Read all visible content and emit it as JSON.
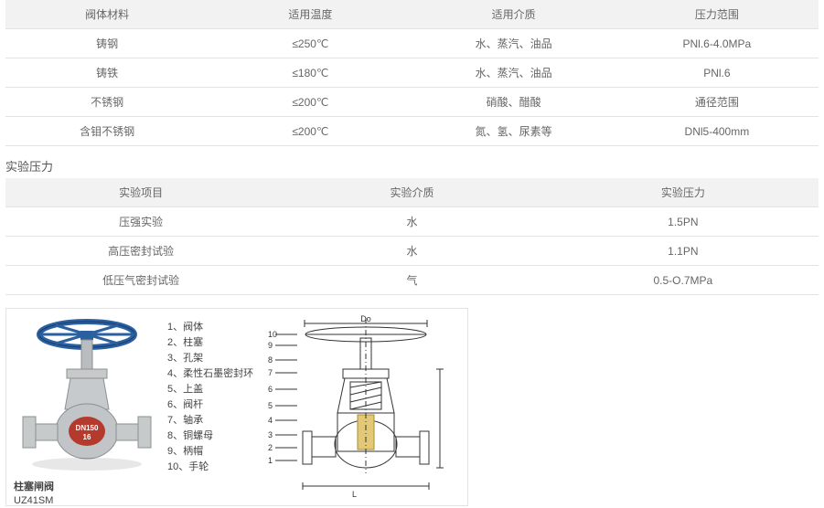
{
  "table1": {
    "headers": [
      "阀体材料",
      "适用温度",
      "适用介质",
      "压力范围"
    ],
    "rows": [
      [
        "铸钢",
        "≤250℃",
        "水、蒸汽、油品",
        "PNl.6-4.0MPa"
      ],
      [
        "铸铁",
        "≤180℃",
        "水、蒸汽、油品",
        "PNl.6"
      ],
      [
        "不锈钢",
        "≤200℃",
        "硝酸、醋酸",
        "通径范围"
      ],
      [
        "含钼不锈钢",
        "≤200℃",
        "氮、氢、尿素等",
        "DNl5-400mm"
      ]
    ]
  },
  "section_title": "实验压力",
  "table2": {
    "headers": [
      "实验项目",
      "实验介质",
      "实验压力"
    ],
    "rows": [
      [
        "压强实验",
        "水",
        "1.5PN"
      ],
      [
        "高压密封试验",
        "水",
        "1.1PN"
      ],
      [
        "低压气密封试验",
        "气",
        "0.5-O.7MPa"
      ]
    ]
  },
  "parts": [
    "阀体",
    "柱塞",
    "孔架",
    "柔性石墨密封环",
    "上盖",
    "阀杆",
    "轴承",
    "铜螺母",
    "柄帽",
    "手轮"
  ],
  "caption_line1": "柱塞闸阀",
  "caption_line2": "UZ41SM",
  "dim_Do": "Do",
  "photo_badge_top": "DN150",
  "photo_badge_bot": "16",
  "colors": {
    "border": "#e3e3e3",
    "header_bg": "#f2f2f2",
    "text": "#666666",
    "wheel": "#2a5fa0",
    "body": "#b9bdbf",
    "diagram_line": "#333333"
  }
}
